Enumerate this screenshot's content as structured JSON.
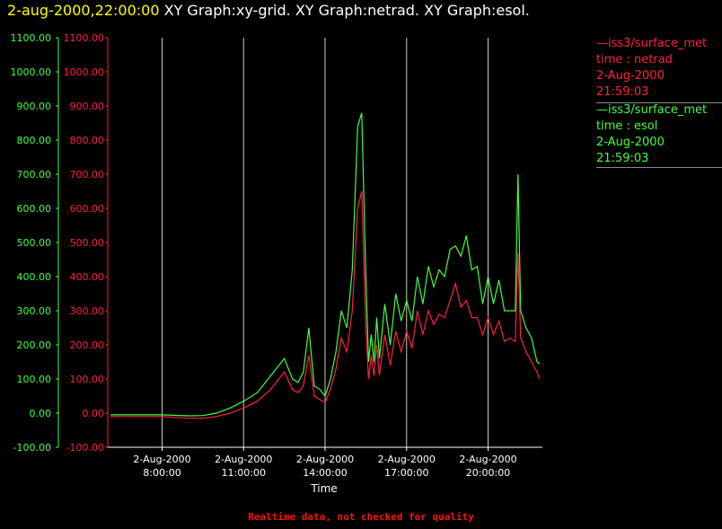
{
  "title": {
    "timestamp": "2-aug-2000,22:00:00",
    "graphs": "XY Graph:xy-grid.  XY Graph:netrad.  XY Graph:esol."
  },
  "footer": "Realtime data, not checked for quality",
  "colors": {
    "netrad": "#ff2040",
    "esol": "#40ff40",
    "grid": "#ffffff",
    "timestamp": "#ffff00"
  },
  "chart_data": {
    "type": "line",
    "xlabel": "Time",
    "ylim": [
      -100,
      1100
    ],
    "yticks_esol": [
      "1100.00",
      "1000.00",
      "900.00",
      "800.00",
      "700.00",
      "600.00",
      "500.00",
      "400.00",
      "300.00",
      "200.00",
      "100.00",
      "0.00",
      "-100.00"
    ],
    "yticks_netrad": [
      "1100.00",
      "1000.00",
      "900.00",
      "800.00",
      "700.00",
      "600.00",
      "500.00",
      "400.00",
      "300.00",
      "200.00",
      "100.00",
      "0.00",
      "-100.00"
    ],
    "xlim_hours": [
      6.0,
      22.0
    ],
    "xticks": [
      {
        "hour": 8,
        "date": "2-Aug-2000",
        "time": "8:00:00"
      },
      {
        "hour": 11,
        "date": "2-Aug-2000",
        "time": "11:00:00"
      },
      {
        "hour": 14,
        "date": "2-Aug-2000",
        "time": "14:00:00"
      },
      {
        "hour": 17,
        "date": "2-Aug-2000",
        "time": "17:00:00"
      },
      {
        "hour": 20,
        "date": "2-Aug-2000",
        "time": "20:00:00"
      }
    ],
    "grid": true,
    "legend": [
      {
        "source": "iss3/surface_met",
        "label": "time : netrad",
        "date": "2-Aug-2000",
        "time": "21:59:03",
        "color": "#ff2040"
      },
      {
        "source": "iss3/surface_met",
        "label": "time : esol",
        "date": "2-Aug-2000",
        "time": "21:59:03",
        "color": "#40ff40"
      }
    ],
    "series": [
      {
        "id": "esol",
        "x": [
          6.1,
          7.0,
          8.0,
          9.0,
          9.5,
          10.0,
          10.5,
          11.0,
          11.5,
          12.0,
          12.2,
          12.5,
          12.8,
          13.0,
          13.2,
          13.4,
          13.6,
          13.8,
          14.0,
          14.2,
          14.4,
          14.6,
          14.8,
          15.0,
          15.2,
          15.35,
          15.5,
          15.6,
          15.7,
          15.8,
          15.9,
          16.0,
          16.2,
          16.4,
          16.6,
          16.8,
          17.0,
          17.2,
          17.4,
          17.6,
          17.8,
          18.0,
          18.2,
          18.4,
          18.6,
          18.8,
          19.0,
          19.2,
          19.4,
          19.6,
          19.8,
          20.0,
          20.2,
          20.4,
          20.6,
          20.8,
          21.0,
          21.1,
          21.2,
          21.4,
          21.6,
          21.8,
          21.9
        ],
        "y": [
          -5,
          -5,
          -5,
          -8,
          -7,
          0,
          15,
          35,
          60,
          110,
          130,
          160,
          100,
          90,
          120,
          250,
          80,
          70,
          50,
          100,
          180,
          300,
          250,
          420,
          840,
          880,
          400,
          150,
          230,
          150,
          280,
          160,
          320,
          200,
          350,
          270,
          330,
          270,
          400,
          320,
          430,
          370,
          420,
          400,
          480,
          490,
          460,
          520,
          420,
          430,
          320,
          400,
          320,
          390,
          300,
          300,
          300,
          700,
          300,
          250,
          220,
          150,
          145
        ]
      },
      {
        "id": "netrad",
        "x": [
          6.1,
          7.0,
          8.0,
          9.0,
          9.5,
          10.0,
          10.5,
          11.0,
          11.5,
          12.0,
          12.2,
          12.5,
          12.8,
          13.0,
          13.2,
          13.4,
          13.6,
          13.8,
          14.0,
          14.2,
          14.4,
          14.6,
          14.8,
          15.0,
          15.2,
          15.35,
          15.5,
          15.6,
          15.7,
          15.8,
          15.9,
          16.0,
          16.2,
          16.4,
          16.6,
          16.8,
          17.0,
          17.2,
          17.4,
          17.6,
          17.8,
          18.0,
          18.2,
          18.4,
          18.6,
          18.8,
          19.0,
          19.2,
          19.4,
          19.6,
          19.8,
          20.0,
          20.2,
          20.4,
          20.6,
          20.8,
          21.0,
          21.1,
          21.2,
          21.4,
          21.6,
          21.8,
          21.9
        ],
        "y": [
          -10,
          -10,
          -10,
          -15,
          -15,
          -10,
          0,
          15,
          35,
          70,
          90,
          120,
          70,
          60,
          80,
          170,
          50,
          40,
          30,
          70,
          130,
          220,
          180,
          300,
          600,
          650,
          250,
          100,
          170,
          110,
          200,
          110,
          230,
          140,
          240,
          180,
          240,
          190,
          300,
          230,
          300,
          260,
          290,
          280,
          330,
          380,
          310,
          330,
          280,
          280,
          230,
          280,
          230,
          270,
          210,
          220,
          210,
          470,
          220,
          180,
          150,
          120,
          100
        ]
      }
    ]
  }
}
